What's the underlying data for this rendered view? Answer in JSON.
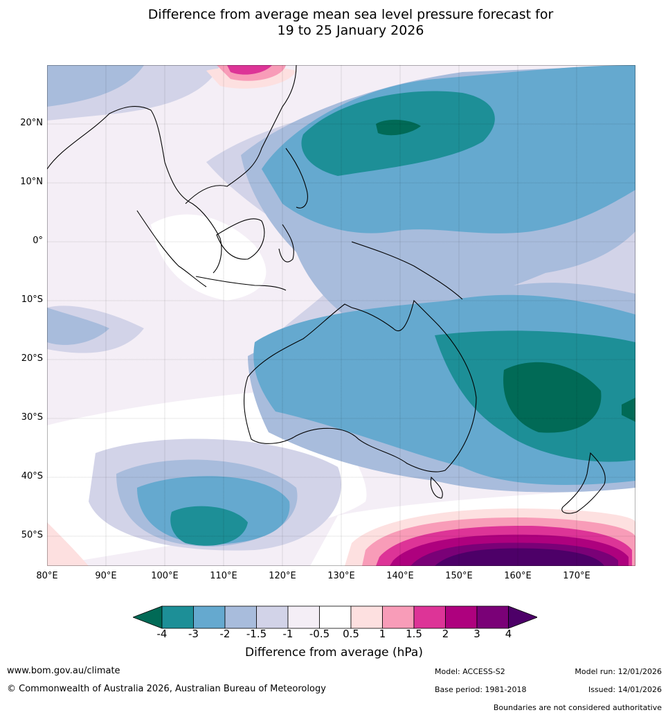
{
  "title_line1": "Difference from average mean sea level pressure forecast for",
  "title_line2": "19 to 25 January 2026",
  "lat_labels": [
    "20°N",
    "10°N",
    "0°",
    "10°S",
    "20°S",
    "30°S",
    "40°S",
    "50°S"
  ],
  "lon_labels": [
    "80°E",
    "90°E",
    "100°E",
    "110°E",
    "120°E",
    "130°E",
    "140°E",
    "150°E",
    "160°E",
    "170°E"
  ],
  "legend": {
    "ticks": [
      "-4",
      "-3",
      "-2",
      "-1.5",
      "-1",
      "-0.5",
      "0.5",
      "1",
      "1.5",
      "2",
      "3",
      "4"
    ],
    "colors": [
      "#016a56",
      "#1d8f97",
      "#65a9cf",
      "#a8bcdc",
      "#d2d3e8",
      "#f4eef6",
      "#ffffff",
      "#fde0e0",
      "#f89cb8",
      "#dd3497",
      "#ae017e",
      "#7a0177",
      "#4d0068"
    ],
    "label": "Difference from average (hPa)"
  },
  "footer": {
    "url": "www.bom.gov.au/climate",
    "copyright": "© Commonwealth of Australia 2026, Australian Bureau of Meteorology",
    "model": "Model: ACCESS-S2",
    "base_period": "Base period: 1981-2018",
    "model_run": "Model run: 12/01/2026",
    "issued": "Issued: 14/01/2026",
    "disclaimer": "Boundaries are not considered authoritative"
  }
}
